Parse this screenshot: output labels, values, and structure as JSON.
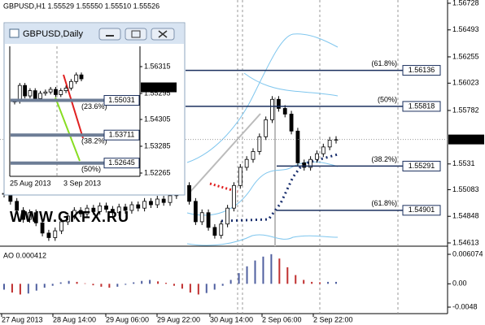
{
  "main": {
    "title": "GBPUSD,H1  1.55529 1.55550 1.55510 1.55526",
    "ylim": [
      1.54613,
      1.56728
    ],
    "yticks": [
      1.56728,
      1.56493,
      1.56255,
      1.56023,
      1.55782,
      1.5531,
      1.55083,
      1.54848,
      1.54613
    ],
    "current_price": 1.55526,
    "closes": [
      1.5505,
      1.5498,
      1.549,
      1.5482,
      1.5488,
      1.5479,
      1.547,
      1.5466,
      1.5472,
      1.548,
      1.5485,
      1.549,
      1.5487,
      1.5492,
      1.5489,
      1.5494,
      1.5491,
      1.5488,
      1.5493,
      1.549,
      1.5495,
      1.5492,
      1.5498,
      1.5495,
      1.55,
      1.5497,
      1.5503,
      1.5508,
      1.5512,
      1.5498,
      1.548,
      1.5488,
      1.5475,
      1.5468,
      1.5478,
      1.5492,
      1.5512,
      1.5528,
      1.5535,
      1.5542,
      1.5555,
      1.557,
      1.5588,
      1.558,
      1.5575,
      1.556,
      1.5532,
      1.5528,
      1.5535,
      1.554,
      1.5546,
      1.5552,
      1.55526
    ],
    "fib_levels": [
      {
        "price": 1.56136,
        "label": "(61.8%)"
      },
      {
        "price": 1.55818,
        "label": "(50%)"
      },
      {
        "price": 1.55291,
        "label": "(38.2%)"
      },
      {
        "price": 1.54901,
        "label": "(61.8%)"
      }
    ],
    "x_labels": [
      "27 Aug 2013",
      "28 Aug 14:00",
      "29 Aug 06:00",
      "29 Aug 22:00",
      "30 Aug 14:00",
      "2 Sep 06:00",
      "2 Sep 22:00"
    ]
  },
  "indicator": {
    "label": "AO 0.000412",
    "ylim": [
      -0.0048,
      0.006074
    ],
    "yticks": [
      0.006074,
      {
        "value": 0,
        "label": "0.00"
      },
      -0.0048
    ],
    "values": [
      -0.0012,
      -0.0018,
      -0.0022,
      -0.002,
      -0.0014,
      -0.0008,
      -0.0004,
      0.0003,
      0.0006,
      0.0004,
      0.0001,
      -0.0003,
      -0.0006,
      -0.0008,
      -0.0006,
      -0.0002,
      0.0003,
      0.0006,
      0.0008,
      0.0005,
      0.0002,
      -0.0004,
      -0.001,
      -0.0018,
      -0.0022,
      -0.0019,
      -0.0012,
      -0.0004,
      0.0008,
      0.0022,
      0.0036,
      0.0048,
      0.0056,
      0.0061,
      0.0052,
      0.0034,
      0.0018,
      0.0008,
      0.0004,
      0.0003,
      0.0004,
      0.0004
    ]
  },
  "inset": {
    "title": "GBPUSD,Daily",
    "ylim": [
      1.52265,
      1.56315
    ],
    "yticks": [
      1.56315,
      1.55295,
      1.54305,
      1.53285,
      1.52265
    ],
    "current_price": 1.55526,
    "closes": [
      1.55,
      1.556,
      1.552,
      1.554,
      1.551,
      1.553,
      1.5535,
      1.5545,
      1.5525,
      1.554,
      1.555,
      1.5575,
      1.56,
      1.5585
    ],
    "levels": [
      {
        "price": 1.55031,
        "label": "(23.6%)"
      },
      {
        "price": 1.53711,
        "label": "(38.2%)"
      },
      {
        "price": 1.52645,
        "label": "(50%)"
      }
    ],
    "dates": [
      "25 Aug 2013",
      "3 Sep 2013"
    ]
  },
  "watermark": "WWW.GKFX.RU"
}
